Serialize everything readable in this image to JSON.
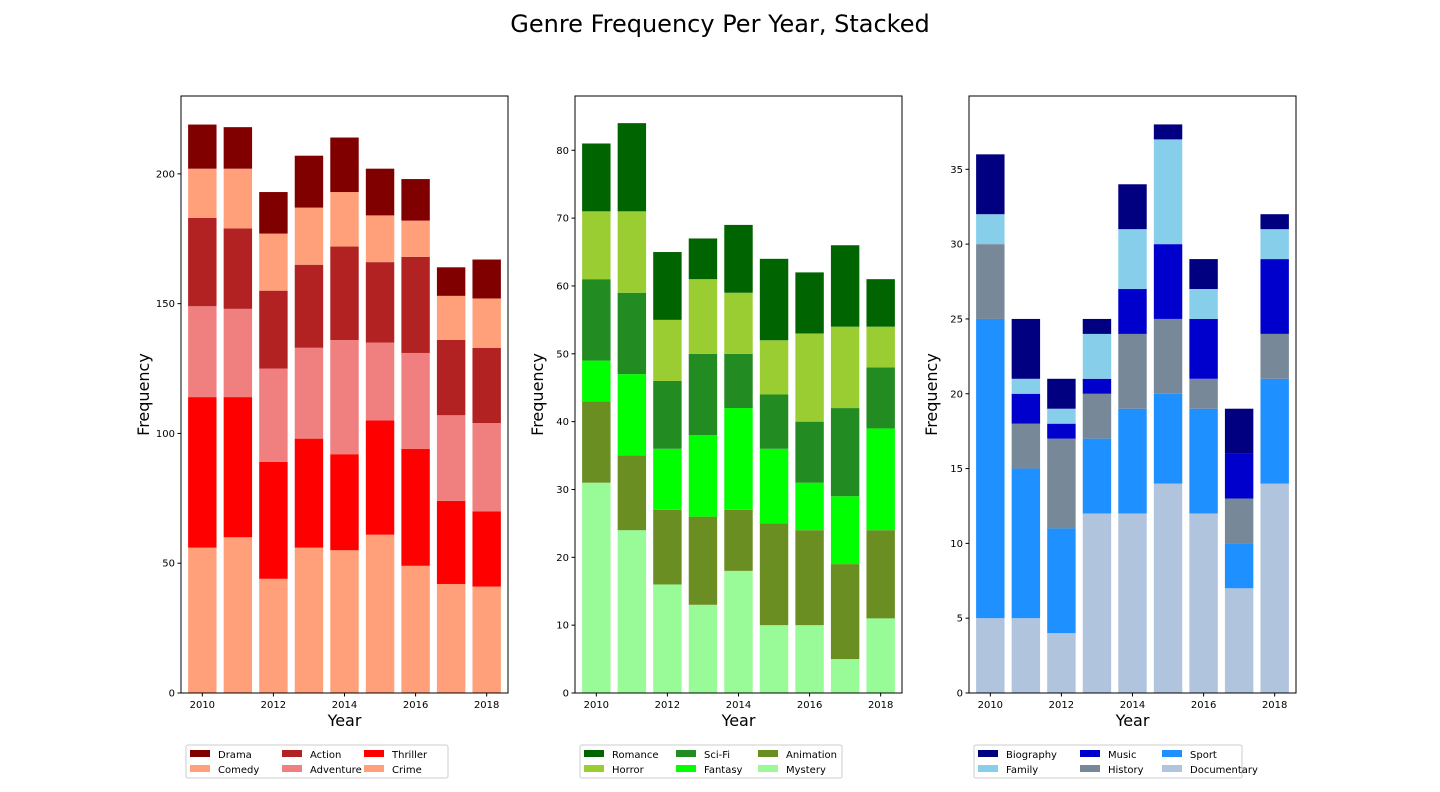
{
  "figure": {
    "title": "Genre Frequency Per Year, Stacked"
  },
  "chart_data": [
    {
      "type": "bar",
      "stacked": true,
      "categories": [
        2010,
        2011,
        2012,
        2013,
        2014,
        2015,
        2016,
        2017,
        2018
      ],
      "xticks": [
        "2010",
        "2012",
        "2014",
        "2016",
        "2018"
      ],
      "xlabel": "Year",
      "ylabel": "Frequency",
      "ylim": [
        0,
        230
      ],
      "yticks": [
        0,
        50,
        100,
        150,
        200
      ],
      "legend": {
        "placement": "bottom",
        "columns": 3
      },
      "series": [
        {
          "name": "Crime",
          "color": "#ffa07a",
          "values": [
            56,
            60,
            44,
            56,
            55,
            61,
            49,
            42,
            41
          ]
        },
        {
          "name": "Thriller",
          "color": "#ff0000",
          "values": [
            58,
            54,
            45,
            42,
            37,
            44,
            45,
            32,
            29
          ]
        },
        {
          "name": "Adventure",
          "color": "#f08080",
          "values": [
            35,
            34,
            36,
            35,
            44,
            30,
            37,
            33,
            34
          ]
        },
        {
          "name": "Action",
          "color": "#b22222",
          "values": [
            34,
            31,
            30,
            32,
            36,
            31,
            37,
            29,
            29
          ]
        },
        {
          "name": "Comedy",
          "color": "#ffa07a",
          "values": [
            19,
            23,
            22,
            22,
            21,
            18,
            14,
            17,
            19
          ]
        },
        {
          "name": "Drama",
          "color": "#800000",
          "values": [
            17,
            16,
            16,
            20,
            21,
            18,
            16,
            11,
            15
          ]
        }
      ],
      "legend_order": [
        "Drama",
        "Comedy",
        "Action",
        "Adventure",
        "Thriller",
        "Crime"
      ]
    },
    {
      "type": "bar",
      "stacked": true,
      "categories": [
        2010,
        2011,
        2012,
        2013,
        2014,
        2015,
        2016,
        2017,
        2018
      ],
      "xticks": [
        "2010",
        "2012",
        "2014",
        "2016",
        "2018"
      ],
      "xlabel": "Year",
      "ylabel": "Frequency",
      "ylim": [
        0,
        88
      ],
      "yticks": [
        0,
        10,
        20,
        30,
        40,
        50,
        60,
        70,
        80
      ],
      "legend": {
        "placement": "bottom",
        "columns": 3
      },
      "series": [
        {
          "name": "Mystery",
          "color": "#98fb98",
          "values": [
            31,
            24,
            16,
            13,
            18,
            10,
            10,
            5,
            11
          ]
        },
        {
          "name": "Animation",
          "color": "#6b8e23",
          "values": [
            12,
            11,
            11,
            13,
            9,
            15,
            14,
            14,
            13
          ]
        },
        {
          "name": "Fantasy",
          "color": "#00ff00",
          "values": [
            6,
            12,
            9,
            12,
            15,
            11,
            7,
            10,
            15
          ]
        },
        {
          "name": "Sci-Fi",
          "color": "#228b22",
          "values": [
            12,
            12,
            10,
            12,
            8,
            8,
            9,
            13,
            9
          ]
        },
        {
          "name": "Horror",
          "color": "#9acd32",
          "values": [
            10,
            12,
            9,
            11,
            9,
            8,
            13,
            12,
            6
          ]
        },
        {
          "name": "Romance",
          "color": "#006400",
          "values": [
            10,
            13,
            10,
            6,
            10,
            12,
            9,
            12,
            7
          ]
        }
      ],
      "legend_order": [
        "Romance",
        "Horror",
        "Sci-Fi",
        "Fantasy",
        "Animation",
        "Mystery"
      ]
    },
    {
      "type": "bar",
      "stacked": true,
      "categories": [
        2010,
        2011,
        2012,
        2013,
        2014,
        2015,
        2016,
        2017,
        2018
      ],
      "xticks": [
        "2010",
        "2012",
        "2014",
        "2016",
        "2018"
      ],
      "xlabel": "Year",
      "ylabel": "Frequency",
      "ylim": [
        0,
        39.9
      ],
      "yticks": [
        0,
        5,
        10,
        15,
        20,
        25,
        30,
        35
      ],
      "legend": {
        "placement": "bottom",
        "columns": 3
      },
      "series": [
        {
          "name": "Documentary",
          "color": "#b0c4de",
          "values": [
            5,
            5,
            4,
            12,
            12,
            14,
            12,
            7,
            14
          ]
        },
        {
          "name": "Sport",
          "color": "#1e90ff",
          "values": [
            20,
            10,
            7,
            5,
            7,
            6,
            7,
            3,
            7
          ]
        },
        {
          "name": "History",
          "color": "#778899",
          "values": [
            5,
            3,
            6,
            3,
            5,
            5,
            2,
            3,
            3
          ]
        },
        {
          "name": "Music",
          "color": "#0000cd",
          "values": [
            0,
            2,
            1,
            1,
            3,
            5,
            4,
            3,
            5
          ]
        },
        {
          "name": "Family",
          "color": "#87ceeb",
          "values": [
            2,
            1,
            1,
            3,
            4,
            7,
            2,
            0,
            2
          ]
        },
        {
          "name": "Biography",
          "color": "#000080",
          "values": [
            4,
            4,
            2,
            1,
            3,
            1,
            2,
            3,
            1
          ]
        }
      ],
      "legend_order": [
        "Biography",
        "Family",
        "Music",
        "History",
        "Sport",
        "Documentary"
      ]
    }
  ]
}
